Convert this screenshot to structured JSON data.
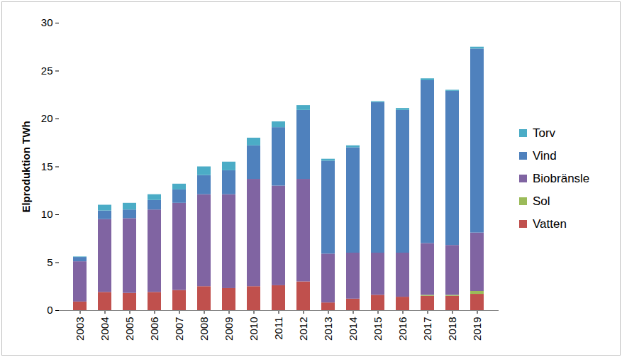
{
  "chart_data": {
    "type": "bar",
    "stacked": true,
    "y_label": "Elproduktion TWh",
    "categories": [
      "2003",
      "2004",
      "2005",
      "2006",
      "2007",
      "2008",
      "2009",
      "2010",
      "2011",
      "2012",
      "2013",
      "2014",
      "2015",
      "2016",
      "2017",
      "2018",
      "2019"
    ],
    "series": [
      {
        "name": "Vatten",
        "color": "#c0504d",
        "values": [
          0.9,
          1.9,
          1.8,
          1.9,
          2.1,
          2.5,
          2.3,
          2.5,
          2.6,
          3.0,
          0.8,
          1.2,
          1.6,
          1.4,
          1.5,
          1.5,
          1.7
        ]
      },
      {
        "name": "Sol",
        "color": "#9bbb59",
        "values": [
          0,
          0,
          0,
          0,
          0,
          0,
          0,
          0,
          0,
          0,
          0,
          0,
          0,
          0,
          0.1,
          0.1,
          0.3
        ]
      },
      {
        "name": "Biobränsle",
        "color": "#8064a2",
        "values": [
          4.2,
          7.6,
          7.8,
          8.6,
          9.1,
          9.6,
          9.8,
          11.2,
          10.4,
          10.7,
          5.1,
          4.8,
          4.4,
          4.6,
          5.4,
          5.2,
          6.1
        ]
      },
      {
        "name": "Vind",
        "color": "#4f81bd",
        "values": [
          0.45,
          0.9,
          0.9,
          1.0,
          1.4,
          2.0,
          2.5,
          3.5,
          6.1,
          7.2,
          9.7,
          11.0,
          15.7,
          14.9,
          17.0,
          16.1,
          19.2
        ]
      },
      {
        "name": "Torv",
        "color": "#4bacc6",
        "values": [
          0.05,
          0.6,
          0.7,
          0.6,
          0.6,
          0.9,
          0.9,
          0.8,
          0.6,
          0.5,
          0.2,
          0.2,
          0.1,
          0.2,
          0.2,
          0.1,
          0.2
        ]
      }
    ],
    "ylim": [
      0,
      30
    ],
    "yticks": [
      0,
      5,
      10,
      15,
      20,
      25,
      30
    ],
    "grid": false,
    "legend": "right"
  }
}
